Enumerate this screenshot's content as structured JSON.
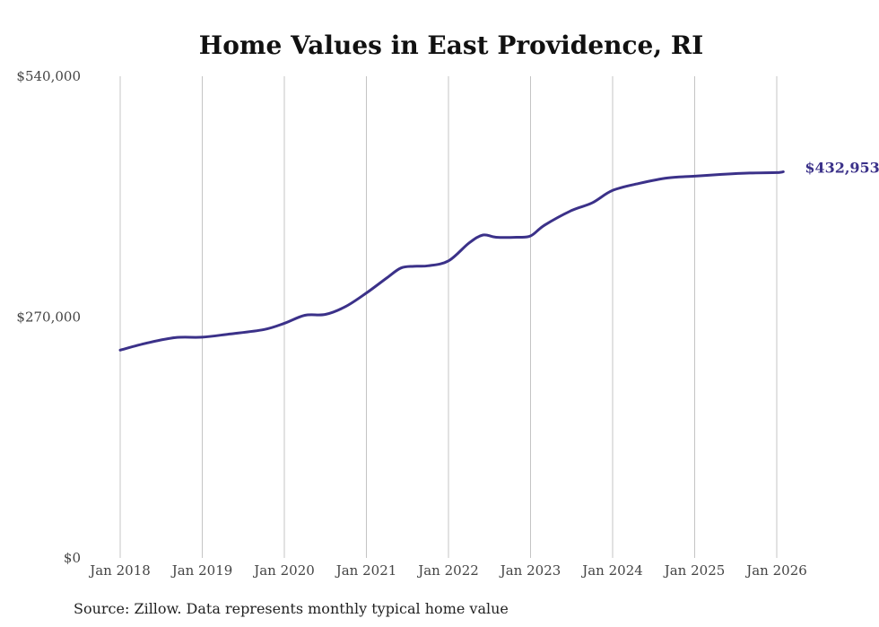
{
  "chart_data": {
    "type": "line",
    "title": "Home Values in East Providence, RI",
    "xlabel": "",
    "ylabel": "",
    "ylim": [
      0,
      540000
    ],
    "y_ticks": [
      0,
      270000,
      540000
    ],
    "y_tick_labels": [
      "$0",
      "$270,000",
      "$540,000"
    ],
    "x_range": [
      2017.5,
      2026.25
    ],
    "x_ticks": [
      2018,
      2019,
      2020,
      2021,
      2022,
      2023,
      2024,
      2025,
      2026
    ],
    "x_tick_labels": [
      "Jan 2018",
      "Jan 2019",
      "Jan 2020",
      "Jan 2021",
      "Jan 2022",
      "Jan 2023",
      "Jan 2024",
      "Jan 2025",
      "Jan 2026"
    ],
    "grid": "vertical",
    "series": [
      {
        "name": "Typical home value",
        "color": "#3b3189",
        "x": [
          2018.0,
          2018.33,
          2018.67,
          2019.0,
          2019.33,
          2019.75,
          2020.0,
          2020.25,
          2020.5,
          2020.75,
          2021.0,
          2021.25,
          2021.42,
          2021.58,
          2021.75,
          2022.0,
          2022.25,
          2022.42,
          2022.58,
          2022.83,
          2023.0,
          2023.17,
          2023.5,
          2023.75,
          2024.0,
          2024.33,
          2024.67,
          2025.0,
          2025.33,
          2025.67,
          2026.0,
          2026.08
        ],
        "values": [
          233000,
          241000,
          247000,
          247500,
          251000,
          256000,
          263000,
          272000,
          273000,
          282000,
          297000,
          314000,
          325000,
          327000,
          327500,
          333000,
          353000,
          362000,
          359500,
          359500,
          361000,
          373000,
          389500,
          398000,
          412000,
          420000,
          426000,
          428000,
          430000,
          431500,
          432000,
          432953
        ]
      }
    ],
    "end_label": "$432,953"
  },
  "footer": {
    "source": "Source: Zillow. Data represents monthly typical home value"
  }
}
